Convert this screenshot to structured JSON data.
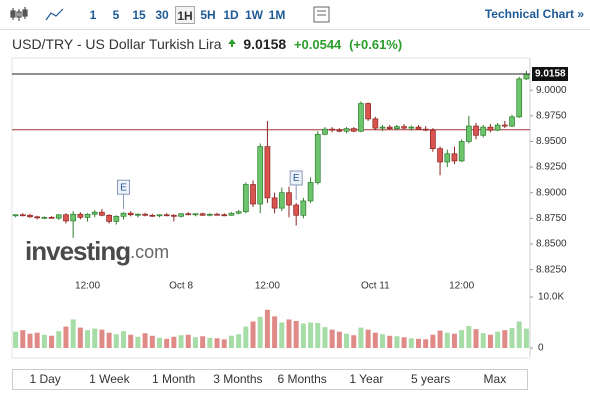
{
  "toolbar": {
    "intervals": [
      "1",
      "5",
      "15",
      "30",
      "1H",
      "5H",
      "1D",
      "1W",
      "1M"
    ],
    "selected_interval": 4,
    "link": "Technical Chart »"
  },
  "header": {
    "title": "USD/TRY - US Dollar Turkish Lira",
    "price": "9.0158",
    "change": "+0.0544",
    "change_percent": "(+0.61%)"
  },
  "chart_data": {
    "type": "candlestick",
    "up_color": "#6cc56c",
    "down_color": "#d9534f",
    "ylim": [
      8.81,
      9.0275
    ],
    "yticks": [
      {
        "value": 9,
        "label": "9.0000"
      },
      {
        "value": 8.975,
        "label": "8.9750"
      },
      {
        "value": 8.95,
        "label": "8.9500"
      },
      {
        "value": 8.925,
        "label": "8.9250"
      },
      {
        "value": 8.9,
        "label": "8.9000"
      },
      {
        "value": 8.875,
        "label": "8.8750"
      },
      {
        "value": 8.85,
        "label": "8.8500"
      },
      {
        "value": 8.825,
        "label": "8.8250"
      }
    ],
    "last_price": 9.0158,
    "reference_line": 8.9614,
    "categories": [
      null,
      null,
      null,
      null,
      null,
      null,
      null,
      null,
      null,
      null,
      "12:00",
      null,
      null,
      null,
      null,
      null,
      null,
      null,
      null,
      null,
      null,
      null,
      null,
      "Oct 8",
      null,
      null,
      null,
      null,
      null,
      null,
      null,
      null,
      null,
      null,
      null,
      "12:00",
      null,
      null,
      null,
      null,
      null,
      null,
      null,
      null,
      null,
      null,
      null,
      null,
      null,
      null,
      "Oct 11",
      null,
      null,
      null,
      null,
      null,
      null,
      null,
      null,
      null,
      null,
      null,
      "12:00",
      null,
      null,
      null,
      null,
      null,
      null,
      null,
      null,
      null
    ],
    "ohlc": [
      [
        8.8775,
        8.879,
        8.876,
        8.8785
      ],
      [
        8.8785,
        8.88,
        8.877,
        8.878
      ],
      [
        8.878,
        8.8795,
        8.8755,
        8.8765
      ],
      [
        8.8765,
        8.8775,
        8.874,
        8.8755
      ],
      [
        8.8755,
        8.877,
        8.8745,
        8.876
      ],
      [
        8.876,
        8.8772,
        8.8748,
        8.8752
      ],
      [
        8.8752,
        8.879,
        8.8735,
        8.8785
      ],
      [
        8.8785,
        8.88,
        8.87,
        8.8725
      ],
      [
        8.8725,
        8.882,
        8.856,
        8.879
      ],
      [
        8.879,
        8.881,
        8.874,
        8.876
      ],
      [
        8.876,
        8.88,
        8.872,
        8.879
      ],
      [
        8.879,
        8.883,
        8.876,
        8.881
      ],
      [
        8.881,
        8.884,
        8.877,
        8.878
      ],
      [
        8.878,
        8.879,
        8.87,
        8.872
      ],
      [
        8.872,
        8.878,
        8.869,
        8.877
      ],
      [
        8.877,
        8.881,
        8.874,
        8.88
      ],
      [
        8.88,
        8.882,
        8.877,
        8.8785
      ],
      [
        8.8785,
        8.88,
        8.876,
        8.879
      ],
      [
        8.879,
        8.8805,
        8.877,
        8.878
      ],
      [
        8.878,
        8.8795,
        8.8765,
        8.8775
      ],
      [
        8.8775,
        8.879,
        8.876,
        8.8785
      ],
      [
        8.8785,
        8.88,
        8.877,
        8.878
      ],
      [
        8.878,
        8.879,
        8.872,
        8.877
      ],
      [
        8.877,
        8.88,
        8.876,
        8.8795
      ],
      [
        8.8795,
        8.881,
        8.878,
        8.8785
      ],
      [
        8.8785,
        8.88,
        8.877,
        8.8795
      ],
      [
        8.8795,
        8.8805,
        8.8775,
        8.878
      ],
      [
        8.878,
        8.88,
        8.877,
        8.879
      ],
      [
        8.879,
        8.8805,
        8.878,
        8.8785
      ],
      [
        8.8785,
        8.88,
        8.877,
        8.878
      ],
      [
        8.878,
        8.881,
        8.8775,
        8.88
      ],
      [
        8.88,
        8.883,
        8.879,
        8.8815
      ],
      [
        8.8815,
        8.91,
        8.88,
        8.908
      ],
      [
        8.908,
        8.912,
        8.886,
        8.889
      ],
      [
        8.889,
        8.948,
        8.88,
        8.945
      ],
      [
        8.945,
        8.97,
        8.89,
        8.895
      ],
      [
        8.895,
        8.9,
        8.88,
        8.885
      ],
      [
        8.885,
        8.905,
        8.882,
        8.9
      ],
      [
        8.9,
        8.906,
        8.876,
        8.888
      ],
      [
        8.888,
        8.89,
        8.868,
        8.878
      ],
      [
        8.878,
        8.895,
        8.875,
        8.892
      ],
      [
        8.892,
        8.915,
        8.89,
        8.91
      ],
      [
        8.91,
        8.96,
        8.908,
        8.957
      ],
      [
        8.957,
        8.964,
        8.956,
        8.962
      ],
      [
        8.962,
        8.964,
        8.959,
        8.961
      ],
      [
        8.961,
        8.963,
        8.959,
        8.96
      ],
      [
        8.96,
        8.964,
        8.958,
        8.9625
      ],
      [
        8.9625,
        8.964,
        8.959,
        8.96
      ],
      [
        8.96,
        8.989,
        8.959,
        8.987
      ],
      [
        8.987,
        8.988,
        8.97,
        8.972
      ],
      [
        8.972,
        8.974,
        8.961,
        8.963
      ],
      [
        8.963,
        8.966,
        8.96,
        8.964
      ],
      [
        8.964,
        8.966,
        8.9615,
        8.9625
      ],
      [
        8.9625,
        8.966,
        8.961,
        8.9645
      ],
      [
        8.9645,
        8.967,
        8.962,
        8.963
      ],
      [
        8.963,
        8.9655,
        8.9605,
        8.964
      ],
      [
        8.964,
        8.966,
        8.9615,
        8.962
      ],
      [
        8.962,
        8.965,
        8.96,
        8.961
      ],
      [
        8.961,
        8.963,
        8.94,
        8.943
      ],
      [
        8.943,
        8.945,
        8.917,
        8.93
      ],
      [
        8.93,
        8.942,
        8.925,
        8.938
      ],
      [
        8.938,
        8.945,
        8.928,
        8.931
      ],
      [
        8.931,
        8.952,
        8.93,
        8.95
      ],
      [
        8.95,
        8.975,
        8.948,
        8.965
      ],
      [
        8.965,
        8.968,
        8.952,
        8.956
      ],
      [
        8.956,
        8.966,
        8.954,
        8.964
      ],
      [
        8.964,
        8.967,
        8.959,
        8.961
      ],
      [
        8.961,
        8.968,
        8.96,
        8.966
      ],
      [
        8.966,
        8.97,
        8.963,
        8.965
      ],
      [
        8.965,
        8.976,
        8.964,
        8.974
      ],
      [
        8.974,
        9.013,
        8.973,
        9.011
      ],
      [
        9.011,
        9.019,
        9.01,
        9.0158
      ]
    ],
    "events": [
      {
        "index": 15,
        "label": "E"
      },
      {
        "index": 39,
        "label": "E"
      }
    ],
    "watermark": [
      "investing",
      ".com"
    ],
    "volume": {
      "ylim": [
        0,
        10000
      ],
      "yticks": [
        {
          "value": 10000,
          "label": "10.0K"
        },
        0
      ],
      "values": [
        3200,
        3500,
        2800,
        3000,
        2600,
        2400,
        3300,
        4200,
        5600,
        4000,
        3500,
        3800,
        3600,
        3000,
        2700,
        3300,
        2600,
        2200,
        2900,
        2400,
        2000,
        1800,
        2200,
        2500,
        2600,
        2100,
        2300,
        2000,
        1900,
        1700,
        2400,
        2700,
        4200,
        5200,
        6100,
        7500,
        6200,
        5000,
        5600,
        5300,
        4800,
        5000,
        4900,
        4100,
        3600,
        3200,
        2800,
        2500,
        4000,
        3600,
        3000,
        2700,
        2400,
        2300,
        2100,
        1900,
        1800,
        1700,
        2600,
        3400,
        3000,
        2800,
        3500,
        4300,
        3700,
        2900,
        2600,
        3200,
        3500,
        3900,
        5200,
        3800
      ]
    }
  },
  "ranges": [
    "1 Day",
    "1 Week",
    "1 Month",
    "3 Months",
    "6 Months",
    "1 Year",
    "5 years",
    "Max"
  ]
}
